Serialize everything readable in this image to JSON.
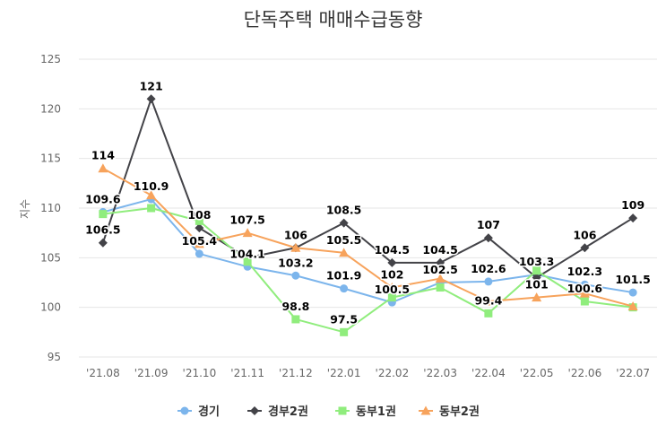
{
  "chart_data": {
    "type": "line",
    "title": "단독주택 매매수급동향",
    "ylabel": "지수",
    "xlabel": "",
    "ylim": [
      95,
      125
    ],
    "yticks": [
      95,
      100,
      105,
      110,
      115,
      120,
      125
    ],
    "grid": true,
    "legend_position": "bottom",
    "categories": [
      "'21.08",
      "'21.09",
      "'21.10",
      "'21.11",
      "'21.12",
      "'22.01",
      "'22.02",
      "'22.03",
      "'22.04",
      "'22.05",
      "'22.06",
      "'22.07"
    ],
    "series": [
      {
        "name": "경기",
        "color": "#7cb5ec",
        "marker": "circle",
        "values": [
          109.6,
          110.9,
          105.4,
          104.1,
          103.2,
          101.9,
          100.5,
          102.5,
          102.6,
          103.3,
          102.3,
          101.5
        ],
        "labeled": [
          true,
          true,
          true,
          true,
          true,
          true,
          true,
          true,
          true,
          true,
          true,
          true
        ]
      },
      {
        "name": "경부2권",
        "color": "#434348",
        "marker": "diamond",
        "values": [
          106.5,
          121,
          108,
          105,
          106,
          108.5,
          104.5,
          104.5,
          107,
          103,
          106,
          109
        ],
        "labeled": [
          true,
          true,
          true,
          false,
          true,
          true,
          true,
          true,
          true,
          false,
          true,
          true
        ]
      },
      {
        "name": "동부1권",
        "color": "#90ed7d",
        "marker": "square",
        "values": [
          109.4,
          110,
          108.7,
          104.6,
          98.8,
          97.5,
          101,
          102,
          99.4,
          103.7,
          100.6,
          100
        ],
        "labeled": [
          false,
          false,
          false,
          false,
          true,
          true,
          false,
          false,
          true,
          false,
          true,
          false
        ]
      },
      {
        "name": "동부2권",
        "color": "#f7a35c",
        "marker": "triangle",
        "values": [
          114,
          111.3,
          106.4,
          107.5,
          106,
          105.5,
          102,
          102.9,
          100.6,
          101,
          101.4,
          100.1
        ],
        "labeled": [
          true,
          false,
          false,
          true,
          false,
          true,
          true,
          false,
          false,
          true,
          false,
          false
        ]
      }
    ]
  }
}
